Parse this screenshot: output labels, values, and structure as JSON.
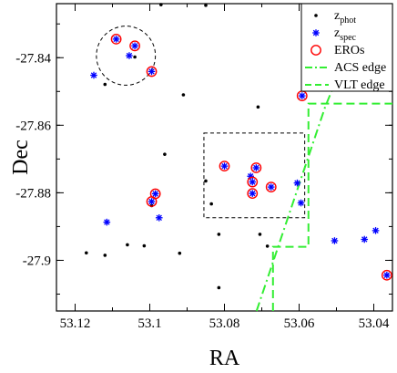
{
  "chart_data": {
    "type": "scatter",
    "title": "",
    "xlabel": "RA",
    "ylabel": "Dec",
    "xlim": [
      53.125,
      53.035
    ],
    "ylim": [
      -27.915,
      -27.824
    ],
    "x_reversed": true,
    "xticks": [
      53.12,
      53.1,
      53.08,
      53.06,
      53.04
    ],
    "yticks": [
      -27.84,
      -27.86,
      -27.88,
      -27.9
    ],
    "xtick_labels": [
      "53.12",
      "53.1",
      "53.08",
      "53.06",
      "53.04"
    ],
    "ytick_labels": [
      "-27.84",
      "-27.86",
      "-27.88",
      "-27.9"
    ],
    "grid": false,
    "legend_position": "top-right",
    "legend": [
      {
        "name": "z",
        "sub": "phot",
        "marker": "dot",
        "color": "#000000"
      },
      {
        "name": "z",
        "sub": "spec",
        "marker": "star",
        "color": "#0000ff"
      },
      {
        "name": "EROs",
        "sub": "",
        "marker": "circle",
        "color": "#ff0000"
      },
      {
        "name": "ACS edge",
        "sub": "",
        "marker": "dashdot",
        "color": "#33ee33"
      },
      {
        "name": "VLT edge",
        "sub": "",
        "marker": "dashed",
        "color": "#33ee33"
      }
    ],
    "series": [
      {
        "name": "z_phot",
        "marker": "dot",
        "color": "#000000",
        "points": [
          [
            53.097,
            -27.8243
          ],
          [
            53.085,
            -27.8245
          ],
          [
            53.104,
            -27.8398
          ],
          [
            53.112,
            -27.8479
          ],
          [
            53.091,
            -27.851
          ],
          [
            53.071,
            -27.8546
          ],
          [
            53.096,
            -27.8686
          ],
          [
            53.0995,
            -27.8838
          ],
          [
            53.0835,
            -27.8833
          ],
          [
            53.085,
            -27.8765
          ],
          [
            53.0705,
            -27.8923
          ],
          [
            53.0815,
            -27.8923
          ],
          [
            53.0685,
            -27.8958
          ],
          [
            53.1015,
            -27.8957
          ],
          [
            53.106,
            -27.8954
          ],
          [
            53.092,
            -27.8979
          ],
          [
            53.112,
            -27.8985
          ],
          [
            53.117,
            -27.8978
          ],
          [
            53.0815,
            -27.9081
          ],
          [
            53.0505,
            -27.8487
          ]
        ]
      },
      {
        "name": "z_spec",
        "marker": "star",
        "color": "#0000ff",
        "points": [
          [
            53.109,
            -27.8345
          ],
          [
            53.104,
            -27.8365
          ],
          [
            53.1055,
            -27.8394
          ],
          [
            53.0995,
            -27.8441
          ],
          [
            53.115,
            -27.8452
          ],
          [
            53.08,
            -27.8721
          ],
          [
            53.0715,
            -27.8726
          ],
          [
            53.073,
            -27.8751
          ],
          [
            53.0725,
            -27.8768
          ],
          [
            53.0675,
            -27.8783
          ],
          [
            53.0725,
            -27.8802
          ],
          [
            53.0605,
            -27.8771
          ],
          [
            53.0595,
            -27.883
          ],
          [
            53.0985,
            -27.8803
          ],
          [
            53.0995,
            -27.8826
          ],
          [
            53.1115,
            -27.8887
          ],
          [
            53.0975,
            -27.8874
          ],
          [
            53.0505,
            -27.8942
          ],
          [
            53.0425,
            -27.8938
          ],
          [
            53.0395,
            -27.8912
          ],
          [
            53.0365,
            -27.9044
          ],
          [
            53.0592,
            -27.8513
          ]
        ]
      },
      {
        "name": "EROs",
        "marker": "circle",
        "color": "#ff0000",
        "points": [
          [
            53.109,
            -27.8345
          ],
          [
            53.104,
            -27.8365
          ],
          [
            53.0995,
            -27.8441
          ],
          [
            53.0592,
            -27.8513
          ],
          [
            53.08,
            -27.8721
          ],
          [
            53.0715,
            -27.8726
          ],
          [
            53.0725,
            -27.8768
          ],
          [
            53.0675,
            -27.8783
          ],
          [
            53.0725,
            -27.8802
          ],
          [
            53.0985,
            -27.8803
          ],
          [
            53.0995,
            -27.8826
          ],
          [
            53.0365,
            -27.9044
          ]
        ]
      }
    ],
    "annotations": [
      {
        "shape": "dashed-circle",
        "center": [
          53.1064,
          -27.8394
        ],
        "radius_ra": 0.0079
      },
      {
        "shape": "dashed-rectangle",
        "ra_range": [
          53.0585,
          53.0855
        ],
        "dec_range": [
          -27.8874,
          -27.8623
        ]
      }
    ],
    "edges": [
      {
        "name": "ACS edge",
        "style": "dashdot",
        "color": "#33ee33",
        "points": [
          [
            53.0714,
            -27.915
          ],
          [
            53.053,
            -27.8545
          ],
          [
            53.0465,
            -27.837
          ]
        ]
      },
      {
        "name": "VLT edge",
        "style": "dashed",
        "color": "#33ee33",
        "points": [
          [
            53.067,
            -27.915
          ],
          [
            53.067,
            -27.896
          ],
          [
            53.0575,
            -27.896
          ],
          [
            53.0575,
            -27.8536
          ],
          [
            53.035,
            -27.8536
          ]
        ]
      }
    ]
  }
}
